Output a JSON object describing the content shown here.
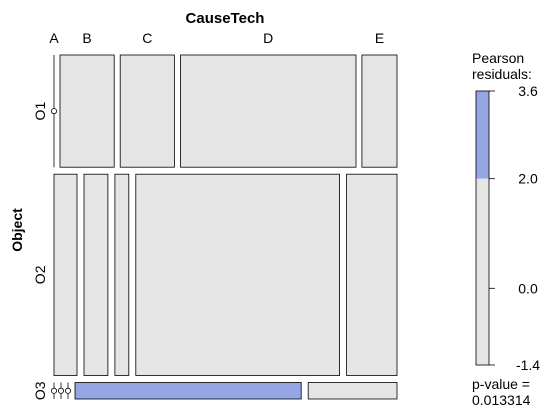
{
  "chart_data": {
    "type": "mosaic",
    "title": "CauseTech",
    "xlabel": "CauseTech",
    "ylabel": "Object",
    "x_levels": [
      "A",
      "B",
      "C",
      "D",
      "E"
    ],
    "y_levels": [
      "O1",
      "O2",
      "O3"
    ],
    "column_widths_by_row": {
      "O1": [
        0.0,
        0.17,
        0.17,
        0.55,
        0.11
      ],
      "O2": [
        0.073,
        0.076,
        0.044,
        0.647,
        0.16
      ],
      "O3": [
        0.0,
        0.0,
        0.0,
        0.718,
        0.282
      ]
    },
    "row_heights": [
      0.34,
      0.61,
      0.05
    ],
    "residual_levels": [
      [
        "gray",
        "gray",
        "gray",
        "gray",
        "gray"
      ],
      [
        "gray",
        "gray",
        "gray",
        "gray",
        "gray"
      ],
      [
        "gray",
        "gray",
        "gray",
        "blue",
        "gray"
      ]
    ],
    "legend": {
      "title_line1": "Pearson",
      "title_line2": "residuals:",
      "ticks": [
        "3.6",
        "2.0",
        "0.0",
        "-1.4"
      ],
      "tick_values": [
        3.6,
        2.0,
        0.0,
        -1.4
      ],
      "range": [
        -1.4,
        3.6
      ],
      "positive_threshold": 2.0,
      "pvalue_label": "p-value =",
      "pvalue": "0.013314"
    },
    "colors": {
      "neutral": "#e5e5e5",
      "positive": "#96a5e3",
      "border": "#000000"
    }
  }
}
